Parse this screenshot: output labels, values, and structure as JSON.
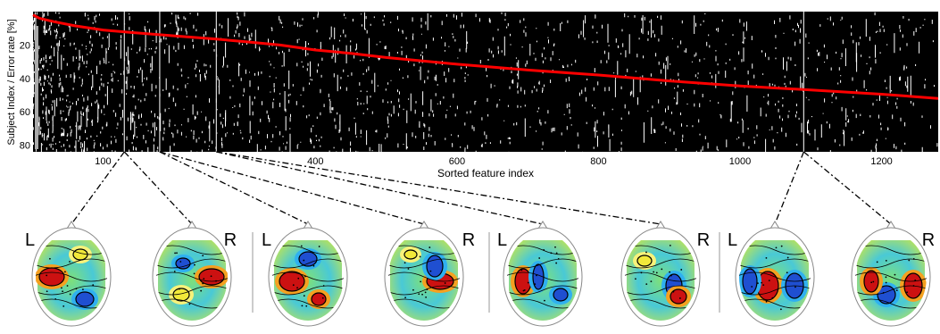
{
  "chart_data": {
    "type": "heatmap",
    "title": "",
    "xlabel": "Sorted feature index",
    "ylabel": "Subject Index / Error rate [%]",
    "xlim": [
      1,
      1280
    ],
    "ylim": [
      0,
      84
    ],
    "x_ticks": [
      "100",
      "400",
      "600",
      "800",
      "1000",
      "1200"
    ],
    "x_tick_values": [
      100,
      400,
      600,
      800,
      1000,
      1200
    ],
    "y_ticks": [
      "20",
      "40",
      "60",
      "80"
    ],
    "y_tick_values": [
      20,
      40,
      60,
      80
    ],
    "background_color": "#000000",
    "mark_color": "#ffffff",
    "error_rate_series": {
      "color": "#ff0000",
      "x": [
        1,
        10,
        30,
        60,
        100,
        140,
        200,
        260,
        300,
        350,
        400,
        450,
        500,
        600,
        700,
        800,
        900,
        1000,
        1100,
        1200,
        1280
      ],
      "y": [
        2,
        4,
        6,
        8.5,
        11,
        12.5,
        14.5,
        16.5,
        18,
        20,
        23,
        25,
        27.5,
        31.5,
        35,
        38,
        41.5,
        44.5,
        47,
        49.5,
        52
      ]
    },
    "highlighted_feature_columns": [
      130,
      180,
      260,
      1090
    ],
    "topographic_maps": [
      {
        "left_label": "L",
        "right_label": "R",
        "feature_index": 130
      },
      {
        "left_label": "L",
        "right_label": "R",
        "feature_index": 180
      },
      {
        "left_label": "L",
        "right_label": "R",
        "feature_index": 260
      },
      {
        "left_label": "L",
        "right_label": "R",
        "feature_index": 1090
      }
    ]
  }
}
